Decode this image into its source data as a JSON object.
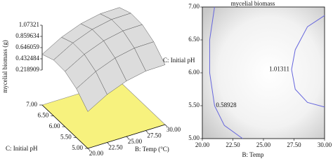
{
  "chart_data": [
    {
      "type": "surface",
      "z_label": "mycelial biomass (g)",
      "x_label": "B: Temp (°C)",
      "y_label": "C: Initial pH",
      "x": [
        20,
        22.5,
        25,
        27.5,
        30
      ],
      "y": [
        5,
        5.5,
        6,
        6.5,
        7
      ],
      "z": [
        [
          0.253,
          0.466,
          0.61,
          0.686,
          0.693
        ],
        [
          0.484,
          0.697,
          0.841,
          0.917,
          0.924
        ],
        [
          0.605,
          0.818,
          0.962,
          1.038,
          1.045
        ],
        [
          0.616,
          0.829,
          0.973,
          1.049,
          1.056
        ],
        [
          0.517,
          0.73,
          0.874,
          0.95,
          0.957
        ]
      ],
      "xlim": [
        20,
        30
      ],
      "ylim": [
        5,
        7
      ],
      "zlim": [
        0.218909,
        1.07321
      ],
      "xticks": [
        {
          "value": 20,
          "label": "20.00"
        },
        {
          "value": 22.5,
          "label": "22.50"
        },
        {
          "value": 25,
          "label": "25.00"
        },
        {
          "value": 27.5,
          "label": "27.50"
        },
        {
          "value": 30,
          "label": "30.00"
        }
      ],
      "yticks": [
        {
          "value": 5,
          "label": "5.00"
        },
        {
          "value": 5.5,
          "label": "5.50"
        },
        {
          "value": 6,
          "label": "6.00"
        },
        {
          "value": 6.5,
          "label": "6.50"
        },
        {
          "value": 7,
          "label": "7.00"
        }
      ],
      "zticks": [
        0.218909,
        0.432484,
        0.646059,
        0.859634,
        1.07321
      ],
      "surface_color": "#dcdcdc",
      "floor_color": "#f7f27e"
    },
    {
      "type": "contour",
      "title": "mycelial biomass",
      "x_label": "B: Temp",
      "y_label": "C: Initial pH",
      "xlim": [
        20,
        30
      ],
      "ylim": [
        5,
        7
      ],
      "xticks": [
        {
          "value": 20,
          "label": "20.00"
        },
        {
          "value": 22.5,
          "label": "22.50"
        },
        {
          "value": 25,
          "label": "25.00"
        },
        {
          "value": 27.5,
          "label": "27.50"
        },
        {
          "value": 30,
          "label": "30.00"
        }
      ],
      "yticks": [
        {
          "value": 5,
          "label": "5.00"
        },
        {
          "value": 5.5,
          "label": "5.50"
        },
        {
          "value": 6,
          "label": "6.00"
        },
        {
          "value": 6.5,
          "label": "6.50"
        },
        {
          "value": 7,
          "label": "7.00"
        }
      ],
      "color": "#6666dd",
      "contours": [
        {
          "value": 0.58928,
          "x": [
            21.0,
            20.6,
            20.6,
            21.0,
            21.8,
            23.3
          ],
          "y": [
            7.0,
            6.5,
            6.0,
            5.5,
            5.2,
            5.0
          ]
        },
        {
          "value": 1.01311,
          "x": [
            30,
            28.6,
            27.6,
            27.3,
            27.6,
            28.6,
            30
          ],
          "y": [
            6.87,
            6.7,
            6.35,
            6.05,
            5.75,
            5.55,
            5.48
          ]
        }
      ]
    }
  ]
}
